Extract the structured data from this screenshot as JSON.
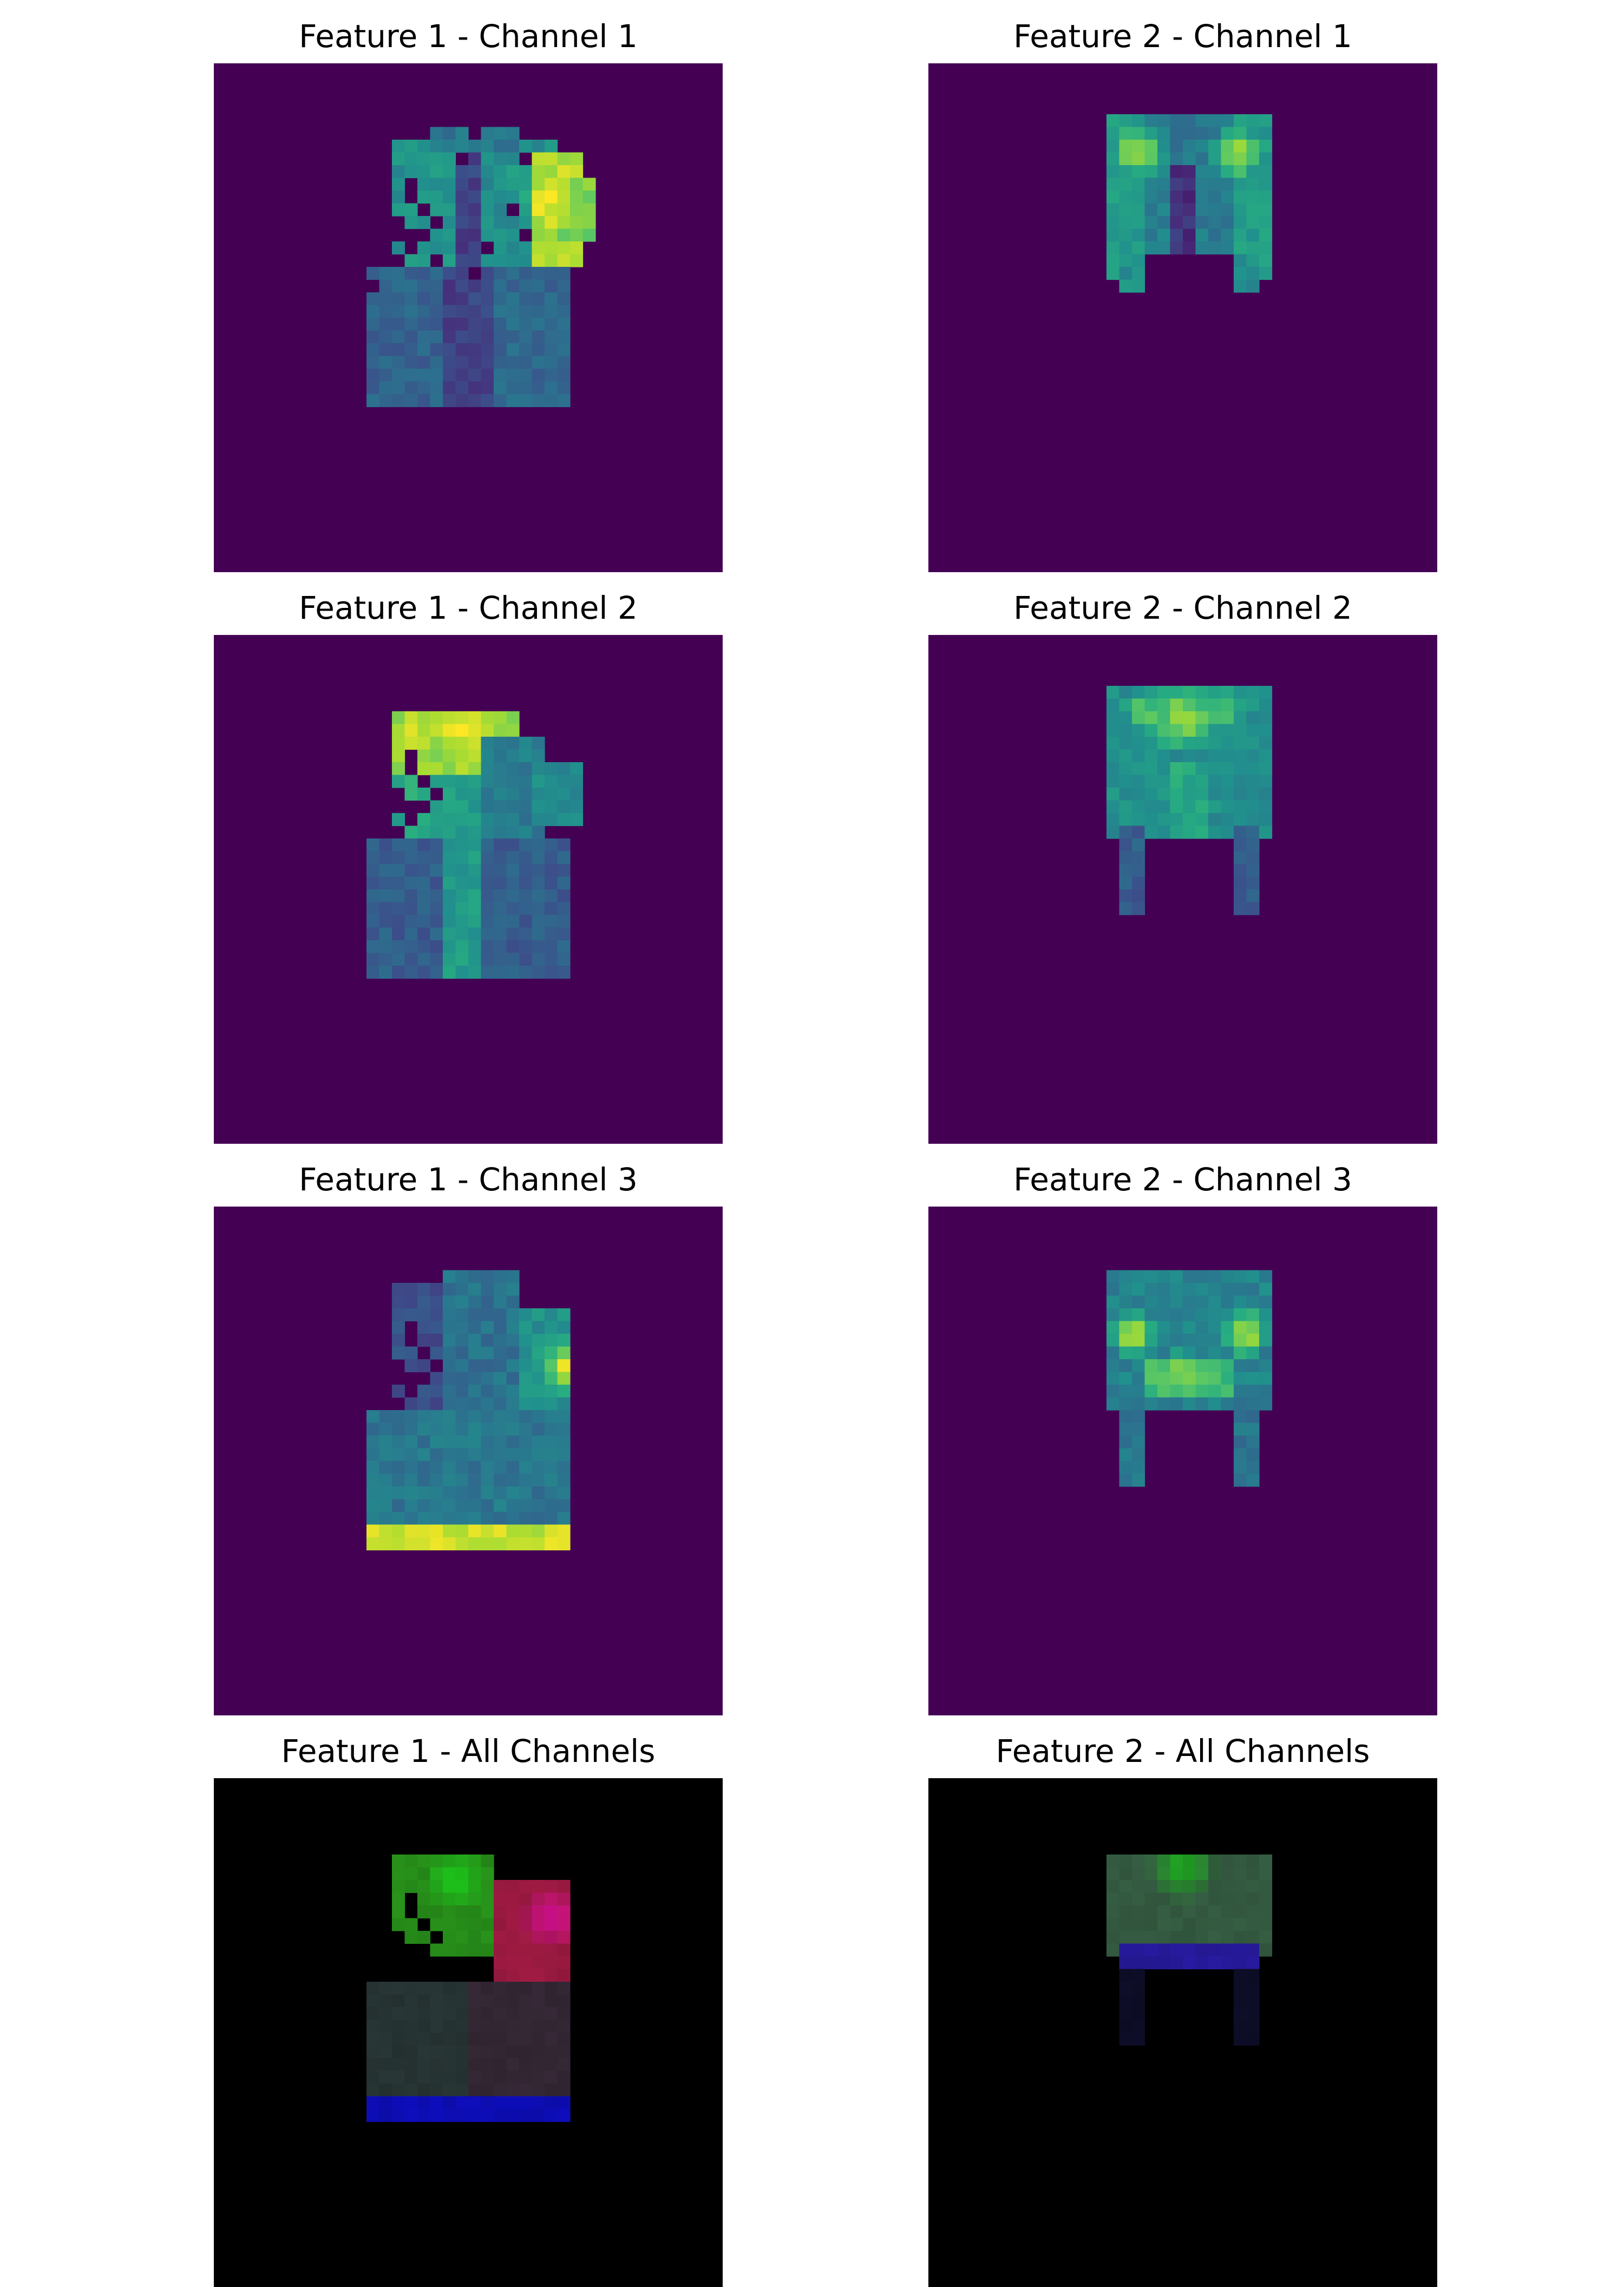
{
  "chart_data": [
    {
      "type": "heatmap",
      "title": "Feature 1 - Channel 1",
      "colormap": "viridis",
      "background": "#440154",
      "grid": false,
      "axes": "off",
      "mask": [
        {
          "cells": [
            [
              20,
              5
            ],
            [
              24,
              7
            ],
            [
              19,
              7
            ],
            [
              23,
              11
            ],
            [
              24,
              13
            ],
            [
              21,
              14
            ],
            [
              17,
              15
            ],
            [
              20,
              16
            ],
            [
              12,
              17
            ]
          ],
          "value": 0.0
        }
      ],
      "regions": [
        {
          "rect": [
            12,
            16,
            8,
            11
          ],
          "value": 0.32
        },
        {
          "rect": [
            20,
            16,
            8,
            11
          ],
          "value": 0.34
        },
        {
          "rect": [
            18,
            6,
            4,
            21
          ],
          "value": 0.2
        },
        {
          "rect": [
            14,
            6,
            5,
            10
          ],
          "value": 0.52
        },
        {
          "rect": [
            21,
            6,
            6,
            10
          ],
          "value": 0.5
        },
        {
          "rect": [
            25,
            7,
            4,
            9
          ],
          "value": 0.88
        },
        {
          "rect": [
            27,
            9,
            3,
            5
          ],
          "value": 0.8
        },
        {
          "rect": [
            17,
            5,
            7,
            2
          ],
          "value": 0.4
        }
      ],
      "blobs": [
        {
          "c": [
            26.5,
            10.5
          ],
          "r": 2.2,
          "value": 0.98
        },
        {
          "c": [
            14.5,
            9.5
          ],
          "r": 1.5,
          "value": 0.45
        },
        {
          "c": [
            24.0,
            9.0
          ],
          "r": 1.4,
          "value": 0.55
        }
      ],
      "holes": [
        [
          15,
          9
        ],
        [
          15,
          10
        ],
        [
          16,
          11
        ],
        [
          17,
          12
        ],
        [
          16,
          13
        ],
        [
          15,
          13
        ],
        [
          14,
          12
        ],
        [
          14,
          13
        ],
        [
          13,
          13
        ],
        [
          12,
          12
        ],
        [
          12,
          13
        ],
        [
          13,
          14
        ],
        [
          12,
          14
        ],
        [
          12,
          15
        ],
        [
          13,
          15
        ],
        [
          14,
          15
        ],
        [
          15,
          14
        ]
      ]
    },
    {
      "type": "heatmap",
      "title": "Feature 2 - Channel 1",
      "colormap": "viridis",
      "background": "#440154",
      "grid": false,
      "axes": "off",
      "regions": [
        {
          "rect": [
            14,
            4,
            3,
            13
          ],
          "value": 0.55
        },
        {
          "rect": [
            17,
            4,
            3,
            11
          ],
          "value": 0.45
        },
        {
          "rect": [
            19,
            4,
            2,
            10
          ],
          "value": 0.4
        },
        {
          "rect": [
            21,
            4,
            3,
            11
          ],
          "value": 0.42
        },
        {
          "rect": [
            24,
            4,
            3,
            13
          ],
          "value": 0.55
        },
        {
          "rect": [
            19,
            8,
            2,
            7
          ],
          "value": 0.15
        },
        {
          "rect": [
            15,
            15,
            2,
            3
          ],
          "value": 0.5
        },
        {
          "rect": [
            24,
            15,
            2,
            3
          ],
          "value": 0.5
        }
      ],
      "blobs": [
        {
          "c": [
            16.5,
            7.0
          ],
          "r": 1.6,
          "value": 0.95
        },
        {
          "c": [
            24.0,
            7.0
          ],
          "r": 1.6,
          "value": 0.95
        }
      ]
    },
    {
      "type": "heatmap",
      "title": "Feature 1 - Channel 2",
      "colormap": "viridis",
      "background": "#440154",
      "grid": false,
      "axes": "off",
      "regions": [
        {
          "rect": [
            12,
            16,
            8,
            11
          ],
          "value": 0.3
        },
        {
          "rect": [
            20,
            16,
            8,
            11
          ],
          "value": 0.3
        },
        {
          "rect": [
            18,
            10,
            3,
            17
          ],
          "value": 0.55
        },
        {
          "rect": [
            14,
            6,
            10,
            5
          ],
          "value": 0.85
        },
        {
          "rect": [
            14,
            11,
            5,
            5
          ],
          "value": 0.6
        },
        {
          "rect": [
            21,
            8,
            5,
            8
          ],
          "value": 0.42
        },
        {
          "rect": [
            25,
            10,
            4,
            5
          ],
          "value": 0.48
        }
      ],
      "blobs": [
        {
          "c": [
            19.5,
            7.5
          ],
          "r": 1.8,
          "value": 1.0
        },
        {
          "c": [
            15.5,
            8.0
          ],
          "r": 1.4,
          "value": 0.95
        }
      ],
      "holes": [
        [
          15,
          9
        ],
        [
          15,
          10
        ],
        [
          16,
          11
        ],
        [
          17,
          12
        ],
        [
          16,
          13
        ],
        [
          15,
          13
        ],
        [
          14,
          12
        ],
        [
          14,
          13
        ],
        [
          13,
          13
        ],
        [
          12,
          12
        ],
        [
          12,
          13
        ],
        [
          13,
          14
        ],
        [
          12,
          14
        ],
        [
          12,
          15
        ],
        [
          13,
          15
        ],
        [
          14,
          15
        ],
        [
          15,
          14
        ]
      ]
    },
    {
      "type": "heatmap",
      "title": "Feature 2 - Channel 2",
      "colormap": "viridis",
      "background": "#440154",
      "grid": false,
      "axes": "off",
      "regions": [
        {
          "rect": [
            14,
            4,
            13,
            12
          ],
          "value": 0.5
        },
        {
          "rect": [
            15,
            15,
            2,
            7
          ],
          "value": 0.3
        },
        {
          "rect": [
            24,
            15,
            2,
            7
          ],
          "value": 0.3
        },
        {
          "rect": [
            19,
            10,
            3,
            6
          ],
          "value": 0.6
        }
      ],
      "blobs": [
        {
          "c": [
            20.0,
            6.5
          ],
          "r": 2.4,
          "value": 0.95
        },
        {
          "c": [
            17.0,
            6.0
          ],
          "r": 1.3,
          "value": 0.8
        },
        {
          "c": [
            23.0,
            6.0
          ],
          "r": 1.3,
          "value": 0.8
        }
      ]
    },
    {
      "type": "heatmap",
      "title": "Feature 1 - Channel 3",
      "colormap": "viridis",
      "background": "#440154",
      "grid": false,
      "axes": "off",
      "regions": [
        {
          "rect": [
            12,
            16,
            8,
            11
          ],
          "value": 0.4
        },
        {
          "rect": [
            20,
            16,
            8,
            11
          ],
          "value": 0.4
        },
        {
          "rect": [
            14,
            6,
            4,
            10
          ],
          "value": 0.25
        },
        {
          "rect": [
            18,
            5,
            6,
            11
          ],
          "value": 0.38
        },
        {
          "rect": [
            24,
            8,
            4,
            8
          ],
          "value": 0.5
        },
        {
          "rect": [
            12,
            25,
            16,
            2
          ],
          "value": 0.92
        }
      ],
      "blobs": [
        {
          "c": [
            27.5,
            12.5
          ],
          "r": 1.8,
          "value": 1.0
        }
      ],
      "holes": [
        [
          15,
          9
        ],
        [
          15,
          10
        ],
        [
          16,
          11
        ],
        [
          17,
          12
        ],
        [
          16,
          13
        ],
        [
          15,
          13
        ],
        [
          14,
          12
        ],
        [
          14,
          13
        ],
        [
          13,
          13
        ],
        [
          12,
          12
        ],
        [
          12,
          13
        ],
        [
          13,
          14
        ],
        [
          12,
          14
        ],
        [
          12,
          15
        ],
        [
          13,
          15
        ],
        [
          14,
          15
        ],
        [
          15,
          14
        ]
      ]
    },
    {
      "type": "heatmap",
      "title": "Feature 2 - Channel 3",
      "colormap": "viridis",
      "background": "#440154",
      "grid": false,
      "axes": "off",
      "regions": [
        {
          "rect": [
            14,
            5,
            13,
            11
          ],
          "value": 0.45
        },
        {
          "rect": [
            15,
            15,
            2,
            7
          ],
          "value": 0.4
        },
        {
          "rect": [
            24,
            15,
            2,
            7
          ],
          "value": 0.4
        },
        {
          "rect": [
            17,
            12,
            7,
            3
          ],
          "value": 0.7
        }
      ],
      "blobs": [
        {
          "c": [
            16.0,
            10.0
          ],
          "r": 1.6,
          "value": 1.0
        },
        {
          "c": [
            25.0,
            10.0
          ],
          "r": 1.6,
          "value": 1.0
        },
        {
          "c": [
            20.0,
            13.0
          ],
          "r": 1.3,
          "value": 0.9
        }
      ]
    },
    {
      "type": "heatmap",
      "title": "Feature 1 - All Channels",
      "colormap": "rgb",
      "background": "#000000",
      "grid": false,
      "axes": "off",
      "regions": [
        {
          "rect": [
            12,
            16,
            8,
            9
          ],
          "value": [
            0.15,
            0.2,
            0.2
          ]
        },
        {
          "rect": [
            20,
            16,
            8,
            9
          ],
          "value": [
            0.2,
            0.15,
            0.2
          ]
        },
        {
          "rect": [
            12,
            25,
            16,
            2
          ],
          "value": [
            0.05,
            0.05,
            0.7
          ]
        },
        {
          "rect": [
            14,
            6,
            8,
            8
          ],
          "value": [
            0.15,
            0.55,
            0.1
          ]
        },
        {
          "rect": [
            22,
            8,
            6,
            8
          ],
          "value": [
            0.6,
            0.1,
            0.25
          ]
        }
      ],
      "blobs": [
        {
          "c": [
            26.5,
            11.0
          ],
          "r": 2.0,
          "value": [
            0.85,
            0.05,
            0.6
          ]
        },
        {
          "c": [
            19.0,
            8.0
          ],
          "r": 2.0,
          "value": [
            0.1,
            0.8,
            0.1
          ]
        }
      ],
      "holes": [
        [
          15,
          9
        ],
        [
          15,
          10
        ],
        [
          16,
          11
        ],
        [
          17,
          12
        ],
        [
          16,
          13
        ],
        [
          15,
          13
        ],
        [
          14,
          12
        ],
        [
          14,
          13
        ],
        [
          13,
          13
        ],
        [
          12,
          12
        ],
        [
          12,
          13
        ],
        [
          13,
          14
        ],
        [
          12,
          14
        ],
        [
          12,
          15
        ],
        [
          13,
          15
        ],
        [
          14,
          15
        ],
        [
          15,
          14
        ]
      ]
    },
    {
      "type": "heatmap",
      "title": "Feature 2 - All Channels",
      "colormap": "rgb",
      "background": "#000000",
      "grid": false,
      "axes": "off",
      "regions": [
        {
          "rect": [
            14,
            6,
            13,
            8
          ],
          "value": [
            0.2,
            0.35,
            0.25
          ]
        },
        {
          "rect": [
            15,
            13,
            11,
            2
          ],
          "value": [
            0.15,
            0.1,
            0.6
          ]
        },
        {
          "rect": [
            15,
            15,
            2,
            6
          ],
          "value": [
            0.05,
            0.05,
            0.15
          ]
        },
        {
          "rect": [
            24,
            15,
            2,
            6
          ],
          "value": [
            0.05,
            0.05,
            0.15
          ]
        }
      ],
      "blobs": [
        {
          "c": [
            20.0,
            7.0
          ],
          "r": 2.2,
          "value": [
            0.1,
            0.7,
            0.1
          ]
        }
      ]
    }
  ]
}
